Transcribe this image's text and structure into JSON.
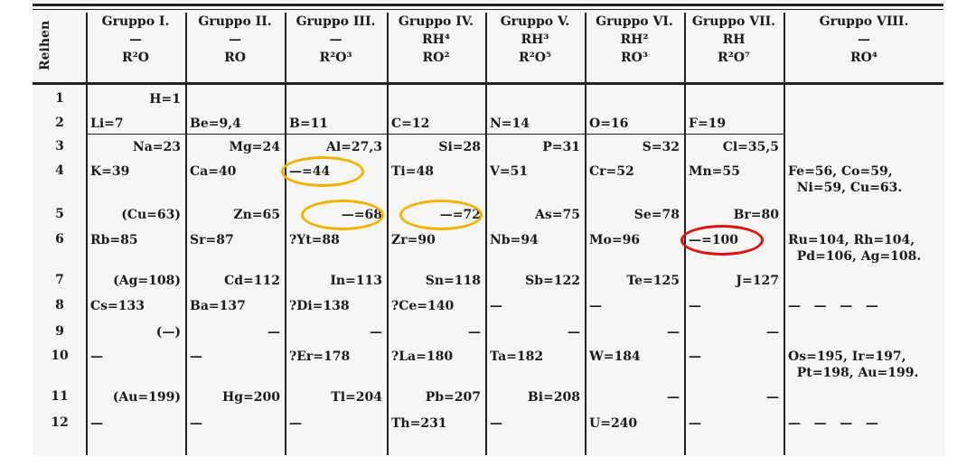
{
  "row_label": "Reihen",
  "groups": [
    {
      "name": "Gruppo I.",
      "hydride": "—",
      "oxide": "R²O"
    },
    {
      "name": "Gruppo II.",
      "hydride": "—",
      "oxide": "RO"
    },
    {
      "name": "Gruppo III.",
      "hydride": "—",
      "oxide": "R²O³"
    },
    {
      "name": "Gruppo IV.",
      "hydride": "RH⁴",
      "oxide": "RO²"
    },
    {
      "name": "Gruppo V.",
      "hydride": "RH³",
      "oxide": "R²O⁵"
    },
    {
      "name": "Gruppo VI.",
      "hydride": "RH²",
      "oxide": "RO³"
    },
    {
      "name": "Gruppo VII.",
      "hydride": "RH",
      "oxide": "R²O⁷"
    },
    {
      "name": "Gruppo VIII.",
      "hydride": "—",
      "oxide": "RO⁴"
    }
  ],
  "rows": [
    {
      "n": "1",
      "align": "r",
      "cells": [
        "H=1",
        "",
        "",
        "",
        "",
        "",
        "",
        ""
      ]
    },
    {
      "n": "2",
      "align": "l",
      "cells": [
        "Li=7",
        "Be=9,4",
        "B=11",
        "C=12",
        "N=14",
        "O=16",
        "F=19",
        ""
      ]
    },
    {
      "n": "3",
      "align": "r",
      "cells": [
        "Na=23",
        "Mg=24",
        "Al=27,3",
        "Si=28",
        "P=31",
        "S=32",
        "Cl=35,5",
        ""
      ]
    },
    {
      "n": "4",
      "align": "l",
      "cells": [
        "K=39",
        "Ca=40",
        "—=44",
        "Ti=48",
        "V=51",
        "Cr=52",
        "Mn=55",
        "Fe=56, Co=59,\n  Ni=59, Cu=63."
      ]
    },
    {
      "n": "5",
      "align": "r",
      "cells": [
        "(Cu=63)",
        "Zn=65",
        "—=68",
        "—=72",
        "As=75",
        "Se=78",
        "Br=80",
        ""
      ]
    },
    {
      "n": "6",
      "align": "l",
      "cells": [
        "Rb=85",
        "Sr=87",
        "?Yt=88",
        "Zr=90",
        "Nb=94",
        "Mo=96",
        "—=100",
        "Ru=104, Rh=104,\n  Pd=106, Ag=108."
      ]
    },
    {
      "n": "7",
      "align": "r",
      "cells": [
        "(Ag=108)",
        "Cd=112",
        "In=113",
        "Sn=118",
        "Sb=122",
        "Te=125",
        "J=127",
        ""
      ]
    },
    {
      "n": "8",
      "align": "l",
      "cells": [
        "Cs=133",
        "Ba=137",
        "?Di=138",
        "?Ce=140",
        "—",
        "—",
        "—",
        "—   —   —   —"
      ]
    },
    {
      "n": "9",
      "align": "r",
      "cells": [
        "(—)",
        "—",
        "—",
        "—",
        "—",
        "—",
        "—",
        ""
      ]
    },
    {
      "n": "10",
      "align": "l",
      "cells": [
        "—",
        "—",
        "?Er=178",
        "?La=180",
        "Ta=182",
        "W=184",
        "—",
        "Os=195, Ir=197,\n  Pt=198, Au=199."
      ]
    },
    {
      "n": "11",
      "align": "r",
      "cells": [
        "(Au=199)",
        "Hg=200",
        "Tl=204",
        "Pb=207",
        "Bi=208",
        "—",
        "—",
        ""
      ]
    },
    {
      "n": "12",
      "align": "l",
      "cells": [
        "—",
        "—",
        "—",
        "Th=231",
        "—",
        "U=240",
        "—",
        "—   —   —   —"
      ]
    }
  ],
  "highlights": [
    {
      "row": 4,
      "group": 3,
      "color": "#f0b400",
      "meaning": "predicted element"
    },
    {
      "row": 5,
      "group": 3,
      "color": "#f0b400",
      "meaning": "predicted element"
    },
    {
      "row": 5,
      "group": 4,
      "color": "#f0b400",
      "meaning": "predicted element"
    },
    {
      "row": 6,
      "group": 7,
      "color": "#e01010",
      "meaning": "predicted element"
    }
  ]
}
